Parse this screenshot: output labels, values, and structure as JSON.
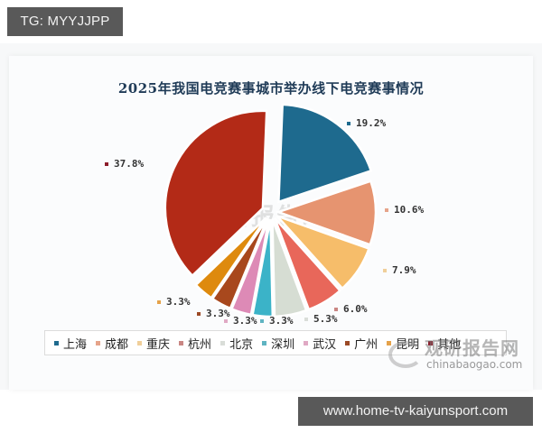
{
  "badges": {
    "top_left": "TG: MYYJJPP",
    "bottom_right": "www.home-tv-kaiyunsport.com"
  },
  "watermark": {
    "title": "观研报告网",
    "url": "chinabaogao.com"
  },
  "chart_data": {
    "type": "pie",
    "title": "2025年我国电竞赛事城市举办线下电竞赛事情况",
    "categories": [
      "上海",
      "成都",
      "重庆",
      "杭州",
      "北京",
      "深圳",
      "武汉",
      "广州",
      "昆明",
      "其他"
    ],
    "values": [
      19.2,
      10.6,
      7.9,
      6.0,
      5.3,
      3.3,
      3.3,
      3.3,
      3.3,
      37.8
    ],
    "labels": [
      "19.2%",
      "10.6%",
      "7.9%",
      "6.0%",
      "5.3%",
      "3.3%",
      "3.3%",
      "3.3%",
      "3.3%",
      "37.8%"
    ],
    "colors": [
      "#1e6a8e",
      "#e69470",
      "#f6bd6a",
      "#e8675a",
      "#d6ddd3",
      "#3bb3c8",
      "#dd8ab6",
      "#a8481d",
      "#de8a0e",
      "#b32a17"
    ],
    "legend_position": "bottom",
    "exploded": true
  },
  "legend": [
    {
      "label": "上海",
      "color": "#1e6a8e"
    },
    {
      "label": "成都",
      "color": "#e6a48a"
    },
    {
      "label": "重庆",
      "color": "#f0cf9a"
    },
    {
      "label": "杭州",
      "color": "#c98683"
    },
    {
      "label": "北京",
      "color": "#d9ddd8"
    },
    {
      "label": "深圳",
      "color": "#5fb4c2"
    },
    {
      "label": "武汉",
      "color": "#e0a9c4"
    },
    {
      "label": "广州",
      "color": "#9c4a26"
    },
    {
      "label": "昆明",
      "color": "#e5a24a"
    },
    {
      "label": "其他",
      "color": "#8c1c2a"
    }
  ]
}
